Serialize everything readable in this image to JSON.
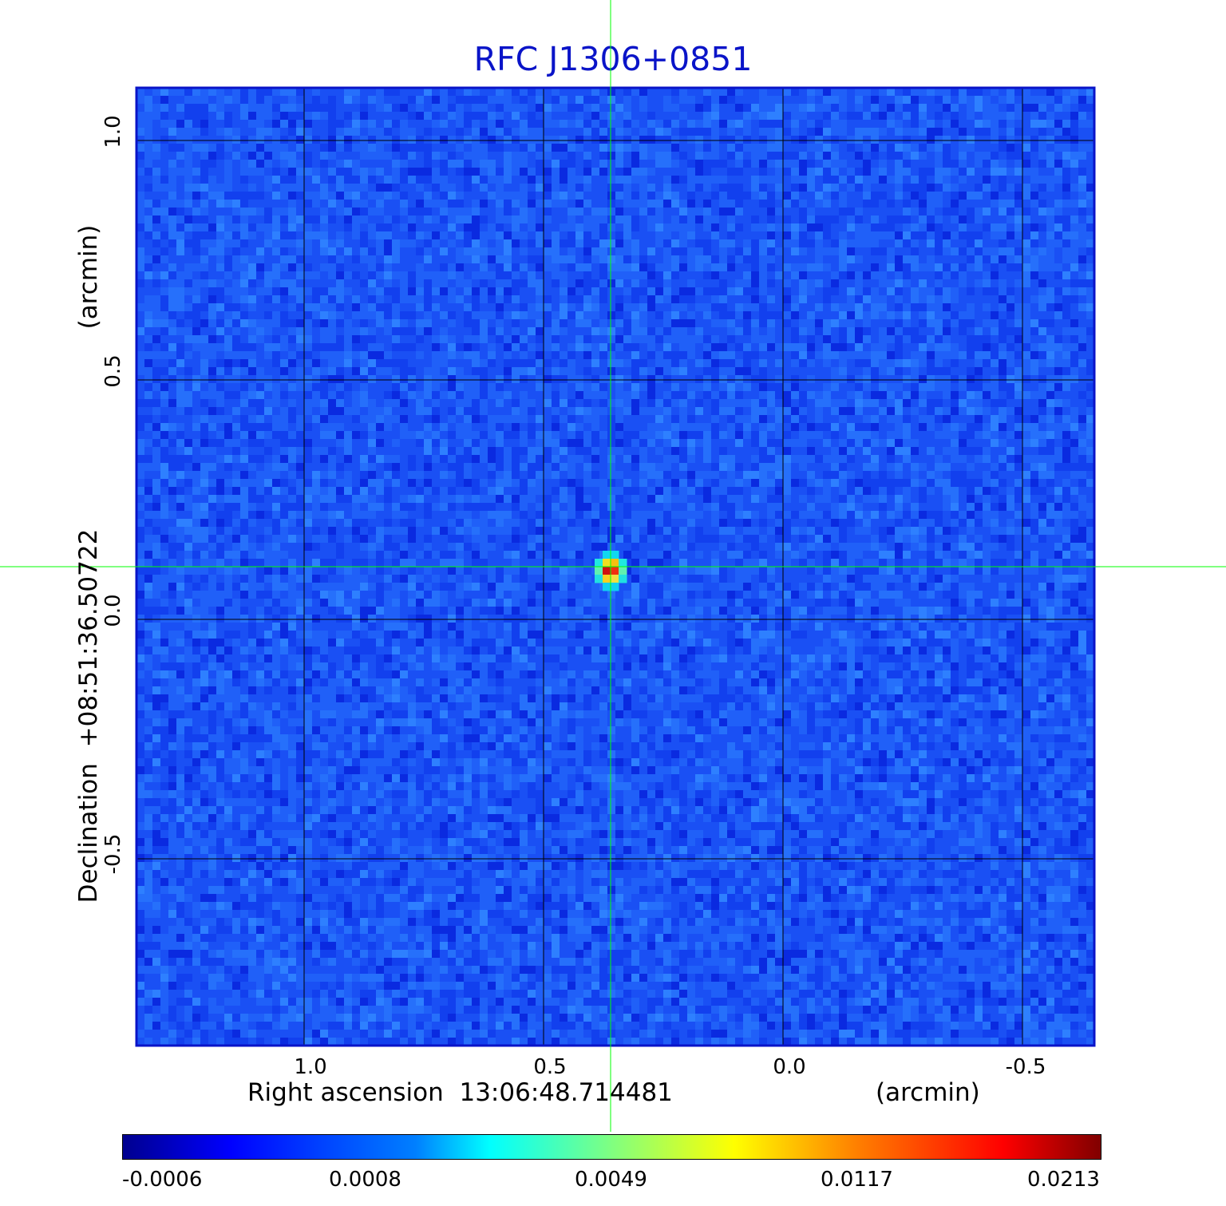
{
  "chart_data": {
    "type": "heatmap",
    "title": "RFC J1306+0851",
    "xlabel": "Right ascension  13:06:48.714481",
    "xunit": "(arcmin)",
    "ylabel": "Declination  +08:51:36.50722",
    "yunit": "(arcmin)",
    "x_ticks": [
      "1.0",
      "0.5",
      "0.0",
      "-0.5"
    ],
    "x_tick_values": [
      1.0,
      0.5,
      0.0,
      -0.5
    ],
    "y_ticks": [
      "1.0",
      "0.5",
      "0.0",
      "-0.5"
    ],
    "y_tick_values": [
      1.0,
      0.5,
      0.0,
      -0.5
    ],
    "xlim": [
      1.35,
      -0.65
    ],
    "ylim": [
      -0.89,
      1.11
    ],
    "x_inverted": true,
    "grid": true,
    "colormap": "jet",
    "source_peak": {
      "x": 0.36,
      "y": 0.11,
      "value": 0.0213
    },
    "crosshair": {
      "x": 0.36,
      "y": 0.11,
      "color": "#00ff00"
    },
    "colorbar": {
      "tick_labels": [
        "-0.0006",
        "0.0008",
        "0.0049",
        "0.0117",
        "0.0213"
      ],
      "min": -0.0006,
      "max": 0.0213
    },
    "colors": {
      "title": "#0a14c8",
      "frame": "#0a14c8",
      "grid": "#000000",
      "crosshair": "#00ff00",
      "background_noise": "#1a4ff0"
    }
  }
}
